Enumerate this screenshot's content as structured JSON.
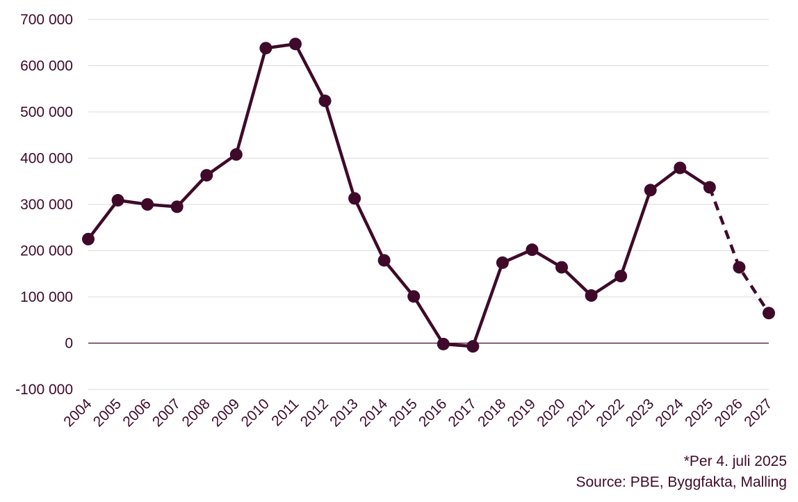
{
  "chart_data": {
    "type": "line",
    "categories": [
      "2004",
      "2005",
      "2006",
      "2007",
      "2008",
      "2009",
      "2010",
      "2011",
      "2012",
      "2013",
      "2014",
      "2015",
      "2016",
      "2017",
      "2018",
      "2019",
      "2020",
      "2021",
      "2022",
      "2023",
      "2024",
      "2025",
      "2026",
      "2027"
    ],
    "series": [
      {
        "values": [
          225000,
          309000,
          300000,
          295000,
          363000,
          408000,
          638000,
          647000,
          524000,
          313000,
          179000,
          101000,
          -2000,
          -7000,
          174000,
          202000,
          164000,
          103000,
          145000,
          331000,
          379000,
          337000,
          164000,
          65000
        ],
        "dashed_from_index": 21,
        "color": "#3f0a2a"
      }
    ],
    "ylim": [
      -100000,
      700000
    ],
    "yticks": [
      -100000,
      0,
      100000,
      200000,
      300000,
      400000,
      500000,
      600000,
      700000
    ],
    "ytick_labels": [
      "-100 000",
      "0",
      "100 000",
      "200 000",
      "300 000",
      "400 000",
      "500 000",
      "600 000",
      "700 000"
    ],
    "grid": true,
    "xlabel": "",
    "ylabel": "",
    "title": ""
  },
  "colors": {
    "line": "#3f0a2a",
    "text": "#3f0a2a",
    "grid": "#d9d9d9",
    "zero_line": "#3f0a2a"
  },
  "footnote": "*Per 4. juli 2025",
  "source": "Source: PBE, Byggfakta, Malling"
}
